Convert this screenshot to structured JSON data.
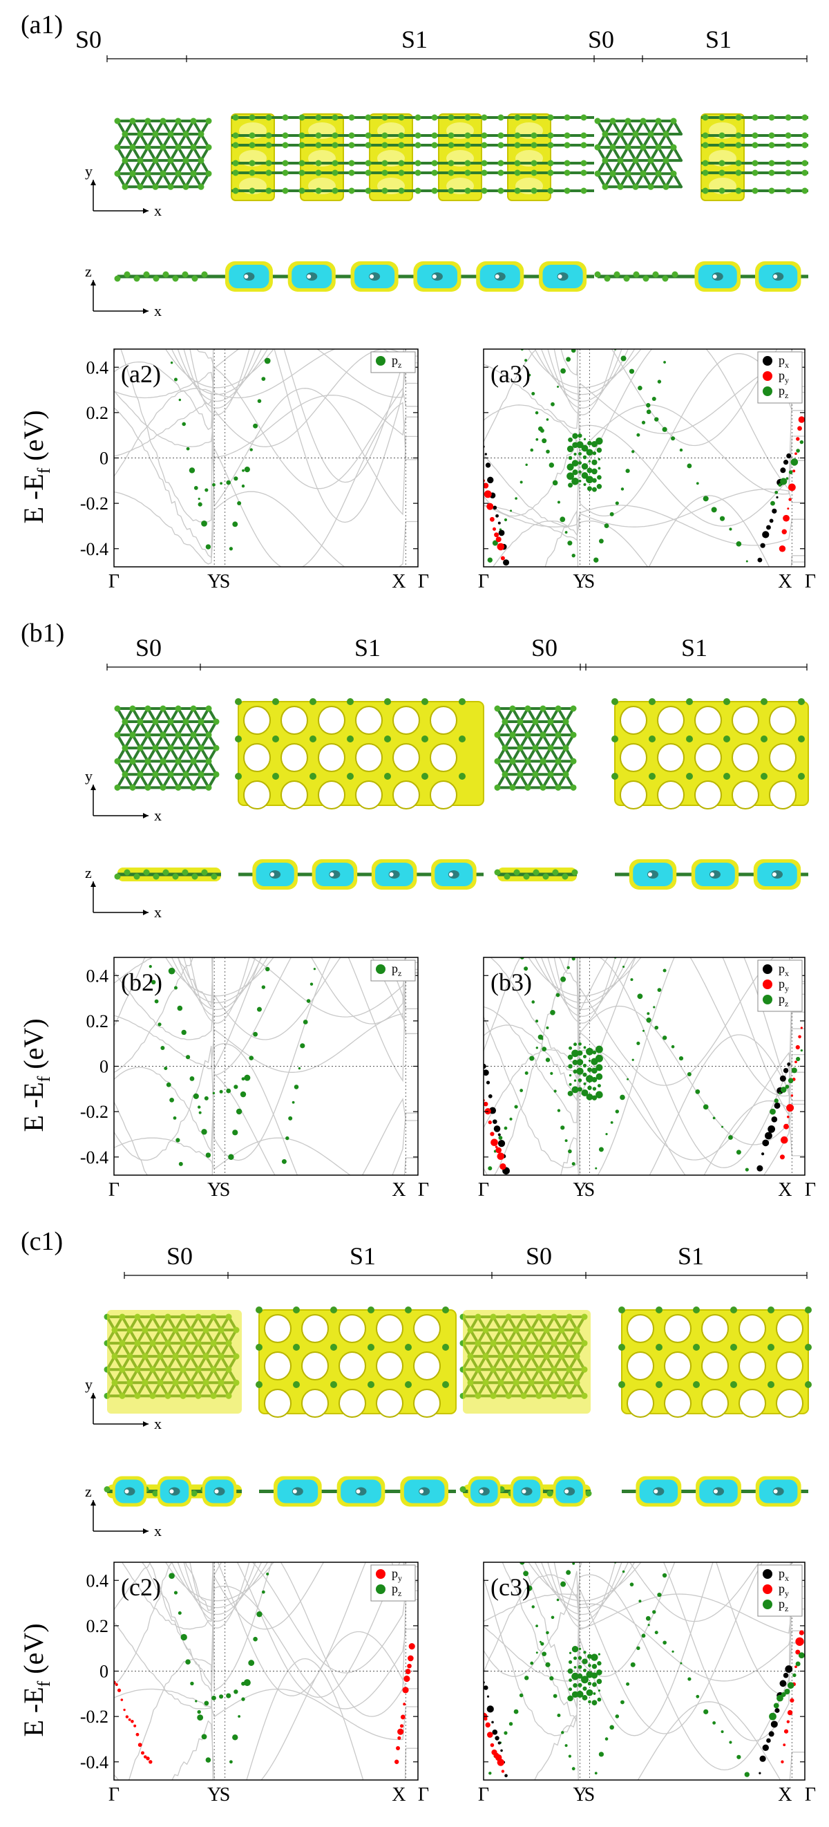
{
  "figure": {
    "y_axis_label": "E -E",
    "y_axis_sub": "f",
    "y_axis_unit": " (eV)",
    "tick_labels": [
      "0.4",
      "0.2",
      "0",
      "-0.2",
      "-0.4"
    ],
    "axes": {
      "xy_y": "y",
      "xy_x": "x",
      "xz_z": "z",
      "xz_x": "x"
    }
  },
  "colors": {
    "green": "#1a8a1a",
    "dark_green": "#2e7d2e",
    "yellow": "#e8e820",
    "cyan": "#30d8e8",
    "red": "#ff0000",
    "black": "#000000",
    "grid": "#c8c8c8"
  },
  "rows": [
    {
      "structure_label": "(a1)",
      "segments": [
        "S0",
        "S1",
        "S0",
        "S1"
      ],
      "left_plot": {
        "label": "(a2)",
        "legend": [
          "p"
        ],
        "legend_subs": [
          "z"
        ],
        "kpoints": [
          "Γ",
          "Y",
          "S",
          "X",
          "Γ"
        ]
      },
      "right_plot": {
        "label": "(a3)",
        "legend": [
          "p",
          "p",
          "p"
        ],
        "legend_subs": [
          "x",
          "y",
          "z"
        ],
        "kpoints": [
          "Γ",
          "Y",
          "S",
          "X",
          "Γ"
        ]
      }
    },
    {
      "structure_label": "(b1)",
      "segments": [
        "S0",
        "S1",
        "S0",
        "S1"
      ],
      "left_plot": {
        "label": "(b2)",
        "legend": [
          "p"
        ],
        "legend_subs": [
          "z"
        ],
        "kpoints": [
          "Γ",
          "Y",
          "S",
          "X",
          "Γ"
        ]
      },
      "right_plot": {
        "label": "(b3)",
        "legend": [
          "p",
          "p",
          "p"
        ],
        "legend_subs": [
          "x",
          "y",
          "z"
        ],
        "kpoints": [
          "Γ",
          "Y",
          "S",
          "X",
          "Γ"
        ]
      }
    },
    {
      "structure_label": "(c1)",
      "segments": [
        "S0",
        "S1",
        "S0",
        "S1"
      ],
      "left_plot": {
        "label": "(c2)",
        "legend": [
          "p",
          "p"
        ],
        "legend_subs": [
          "y",
          "z"
        ],
        "kpoints": [
          "Γ",
          "Y",
          "S",
          "X",
          "Γ"
        ]
      },
      "right_plot": {
        "label": "(c3)",
        "legend": [
          "p",
          "p",
          "p"
        ],
        "legend_subs": [
          "x",
          "y",
          "z"
        ],
        "kpoints": [
          "Γ",
          "Y",
          "S",
          "X",
          "Γ"
        ]
      }
    }
  ]
}
